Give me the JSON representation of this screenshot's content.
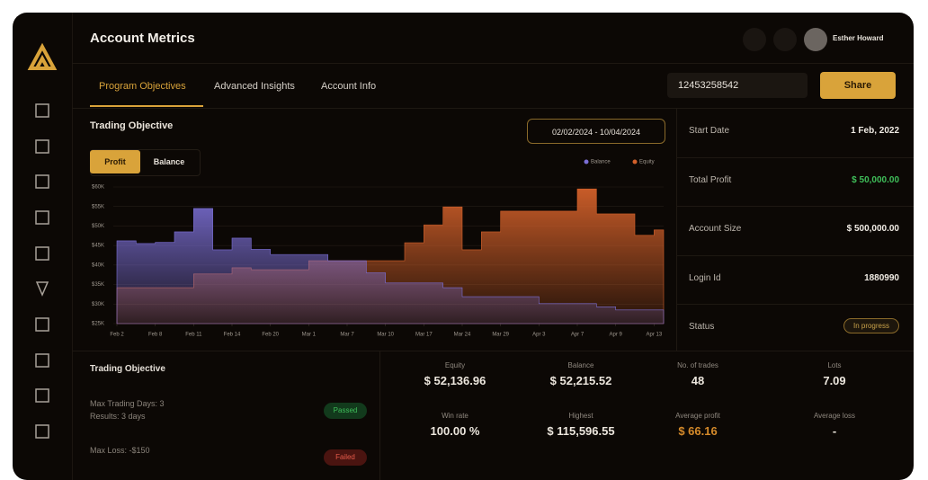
{
  "header": {
    "title": "Account Metrics",
    "user": "Esther Howard"
  },
  "tabs": [
    "Program Objectives",
    "Advanced Insights",
    "Account Info"
  ],
  "account_id": "12453258542",
  "share": "Share",
  "chart_data": {
    "type": "area",
    "title": "Trading Objective",
    "toggles": [
      "Profit",
      "Balance"
    ],
    "date_range": "02/02/2024 - 10/04/2024",
    "step": true,
    "grid": true,
    "x": [
      0,
      2,
      4,
      6,
      8,
      10,
      12,
      14,
      16,
      18,
      20,
      22,
      24,
      26,
      28,
      30,
      32,
      34,
      36,
      38,
      40,
      42,
      44,
      46,
      48,
      50,
      52,
      54,
      56
    ],
    "xlim": [
      0,
      57
    ],
    "xticks": [
      {
        "value": 0,
        "label": "Feb 2"
      },
      {
        "value": 4,
        "label": "Feb 8"
      },
      {
        "value": 8,
        "label": "Feb 11"
      },
      {
        "value": 12,
        "label": "Feb 14"
      },
      {
        "value": 16,
        "label": "Feb 20"
      },
      {
        "value": 20,
        "label": "Mar 1"
      },
      {
        "value": 24,
        "label": "Mar 7"
      },
      {
        "value": 28,
        "label": "Mar 10"
      },
      {
        "value": 32,
        "label": "Mar 17"
      },
      {
        "value": 36,
        "label": "Mar 24"
      },
      {
        "value": 40,
        "label": "Mar 29"
      },
      {
        "value": 44,
        "label": "Apr 3"
      },
      {
        "value": 48,
        "label": "Apr 7"
      },
      {
        "value": 52,
        "label": "Apr 9"
      },
      {
        "value": 56,
        "label": "Apr 13"
      }
    ],
    "ylim": [
      25000,
      60000
    ],
    "yticks": [
      {
        "value": 25000,
        "label": "$25K"
      },
      {
        "value": 30000,
        "label": "$30K"
      },
      {
        "value": 35000,
        "label": "$35K"
      },
      {
        "value": 40000,
        "label": "$40K"
      },
      {
        "value": 45000,
        "label": "$45K"
      },
      {
        "value": 50000,
        "label": "$50K"
      },
      {
        "value": 55000,
        "label": "$55K"
      },
      {
        "value": 60000,
        "label": "$60K"
      }
    ],
    "series": [
      {
        "name": "Equity",
        "color": "#d2602a",
        "values": [
          34200,
          34200,
          34200,
          34200,
          37700,
          37700,
          39300,
          38800,
          38800,
          38800,
          41100,
          41100,
          41100,
          41100,
          41100,
          45700,
          50300,
          54900,
          43900,
          48500,
          53800,
          53800,
          53800,
          53800,
          59500,
          53100,
          53100,
          47600,
          49000
        ]
      },
      {
        "name": "Balance",
        "color": "#7b6fd6",
        "values": [
          46200,
          45500,
          45800,
          48500,
          54500,
          43900,
          46900,
          44000,
          42700,
          42700,
          42700,
          41100,
          41100,
          38000,
          35400,
          35400,
          35400,
          34200,
          31900,
          31900,
          31900,
          31900,
          30100,
          30100,
          30100,
          29300,
          28500,
          28500,
          28500
        ]
      }
    ]
  },
  "account_info": [
    {
      "label": "Start Date",
      "value": "1 Feb, 2022"
    },
    {
      "label": "Total Profit",
      "value": "$ 50,000.00"
    },
    {
      "label": "Account Size",
      "value": "$ 500,000.00"
    },
    {
      "label": "Login Id",
      "value": "1880990"
    },
    {
      "label": "Status",
      "value": "In progress"
    }
  ],
  "objectives": {
    "title": "Trading Objective",
    "items": [
      {
        "text": "Max Trading Days: 3",
        "detail": "Results: 3 days",
        "status": "Passed"
      },
      {
        "text": "Max Loss: -$150",
        "status": "Failed"
      }
    ]
  },
  "stats": [
    {
      "label": "Equity",
      "value": "$ 52,136.96"
    },
    {
      "label": "Balance",
      "value": "$ 52,215.52"
    },
    {
      "label": "No. of trades",
      "value": "48"
    },
    {
      "label": "Lots",
      "value": "7.09"
    },
    {
      "label": "Win rate",
      "value": "100.00 %"
    },
    {
      "label": "Highest",
      "value": "$ 115,596.55"
    },
    {
      "label": "Average profit",
      "value": "$ 66.16"
    },
    {
      "label": "Average loss",
      "value": "-"
    }
  ]
}
